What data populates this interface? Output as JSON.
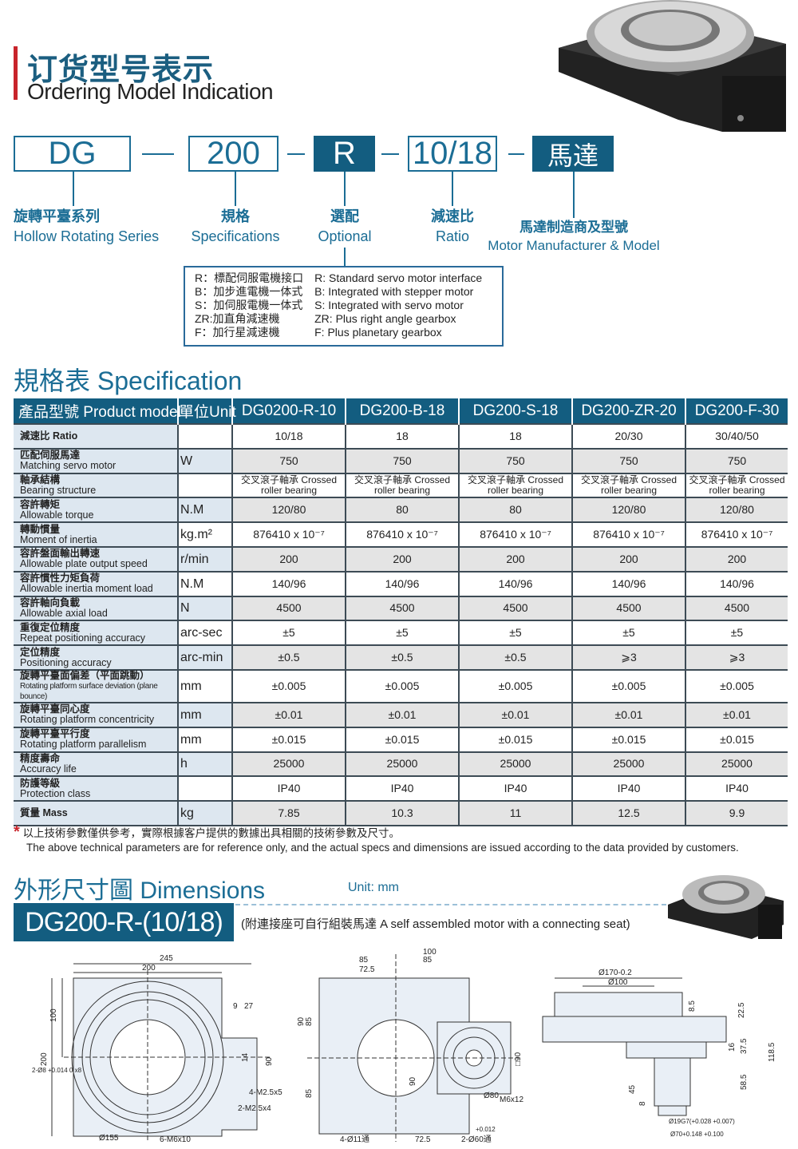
{
  "header": {
    "title_cn": "订货型号表示",
    "title_en": "Ordering Model Indication"
  },
  "model_code": [
    {
      "code": "DG",
      "cn": "旋轉平臺系列",
      "en": "Hollow Rotating Series"
    },
    {
      "code": "200",
      "cn": "規格",
      "en": "Specifications"
    },
    {
      "code": "R",
      "cn": "選配",
      "en": "Optional"
    },
    {
      "code": "10/18",
      "cn": "減速比",
      "en": "Ratio"
    },
    {
      "code": "馬達",
      "cn": "馬達制造商及型號",
      "en": "Motor Manufacturer & Model"
    }
  ],
  "options": {
    "cn": [
      "R：標配伺服電機接口",
      "B：加步進電機一体式",
      "S：加伺服電機一体式",
      "ZR:加直角減速機",
      "F：加行星減速機"
    ],
    "en": [
      "R: Standard servo motor interface",
      "B: Integrated with stepper motor",
      "S: Integrated with servo motor",
      "ZR: Plus right angle gearbox",
      "F: Plus planetary gearbox"
    ]
  },
  "spec": {
    "title": "規格表 Specification",
    "headers": [
      "產品型號 Product model",
      "單位Unit",
      "DG0200-R-10",
      "DG200-B-18",
      "DG200-S-18",
      "DG200-ZR-20",
      "DG200-F-30"
    ],
    "rows": [
      {
        "cn": "減速比 Ratio",
        "en": "",
        "unit": "",
        "v": [
          "10/18",
          "18",
          "18",
          "20/30",
          "30/40/50"
        ]
      },
      {
        "cn": "匹配伺服馬達",
        "en": "Matching servo motor",
        "unit": "W",
        "v": [
          "750",
          "750",
          "750",
          "750",
          "750"
        ]
      },
      {
        "cn": "軸承結構",
        "en": "Bearing structure",
        "unit": "",
        "v": [
          "交叉滾子軸承 Crossed roller bearing",
          "交叉滾子軸承 Crossed roller bearing",
          "交叉滾子軸承 Crossed roller bearing",
          "交叉滾子軸承 Crossed roller bearing",
          "交叉滾子軸承 Crossed roller bearing"
        ]
      },
      {
        "cn": "容許轉矩",
        "en": "Allowable torque",
        "unit": "N.M",
        "v": [
          "120/80",
          "80",
          "80",
          "120/80",
          "120/80"
        ]
      },
      {
        "cn": "轉動慣量",
        "en": "Moment of inertia",
        "unit": "kg.m²",
        "v": [
          "876410 x 10⁻⁷",
          "876410 x 10⁻⁷",
          "876410 x 10⁻⁷",
          "876410 x 10⁻⁷",
          "876410 x 10⁻⁷"
        ]
      },
      {
        "cn": "容許盤面輸出轉速",
        "en": "Allowable plate output speed",
        "unit": "r/min",
        "v": [
          "200",
          "200",
          "200",
          "200",
          "200"
        ]
      },
      {
        "cn": "容許慣性力矩負荷",
        "en": "Allowable inertia moment load",
        "unit": "N.M",
        "v": [
          "140/96",
          "140/96",
          "140/96",
          "140/96",
          "140/96"
        ]
      },
      {
        "cn": "容許軸向負載",
        "en": "Allowable axial load",
        "unit": "N",
        "v": [
          "4500",
          "4500",
          "4500",
          "4500",
          "4500"
        ]
      },
      {
        "cn": "重復定位精度",
        "en": "Repeat positioning accuracy",
        "unit": "arc-sec",
        "v": [
          "±5",
          "±5",
          "±5",
          "±5",
          "±5"
        ]
      },
      {
        "cn": "定位精度",
        "en": "Positioning accuracy",
        "unit": "arc-min",
        "v": [
          "±0.5",
          "±0.5",
          "±0.5",
          "⩾3",
          "⩾3"
        ]
      },
      {
        "cn": "旋轉平臺面偏差（平面跳動）",
        "en": "Rotating platform surface deviation (plane bounce)",
        "unit": "mm",
        "v": [
          "±0.005",
          "±0.005",
          "±0.005",
          "±0.005",
          "±0.005"
        ]
      },
      {
        "cn": "旋轉平臺同心度",
        "en": "Rotating platform concentricity",
        "unit": "mm",
        "v": [
          "±0.01",
          "±0.01",
          "±0.01",
          "±0.01",
          "±0.01"
        ]
      },
      {
        "cn": "旋轉平臺平行度",
        "en": "Rotating platform parallelism",
        "unit": "mm",
        "v": [
          "±0.015",
          "±0.015",
          "±0.015",
          "±0.015",
          "±0.015"
        ]
      },
      {
        "cn": "精度壽命",
        "en": "Accuracy life",
        "unit": "h",
        "v": [
          "25000",
          "25000",
          "25000",
          "25000",
          "25000"
        ]
      },
      {
        "cn": "防護等級",
        "en": "Protection class",
        "unit": "",
        "v": [
          "IP40",
          "IP40",
          "IP40",
          "IP40",
          "IP40"
        ]
      },
      {
        "cn": "質量 Mass",
        "en": "",
        "unit": "kg",
        "v": [
          "7.85",
          "10.3",
          "11",
          "12.5",
          "9.9"
        ]
      }
    ],
    "note_cn": "以上技術參數僅供參考，實際根據客户提供的數據出具相關的技術參數及尺寸。",
    "note_en": "The above technical parameters are for reference only, and the actual specs and dimensions are issued according to the data provided by customers."
  },
  "dimensions": {
    "title": "外形尺寸圖 Dimensions",
    "unit": "Unit: mm",
    "model": "DG200-R-(10/18)",
    "caption": "(附連接座可自行組裝馬達 A self assembled motor with a connecting seat)",
    "view1": [
      "245",
      "200",
      "100",
      "200",
      "9",
      "27",
      "90",
      "14",
      "2-Ø8 +0.014 0 x8",
      "4-M2.5x5",
      "2-M2.5x4",
      "Ø155",
      "6-M6x10"
    ],
    "view2": [
      "100",
      "85",
      "85",
      "72.5",
      "90",
      "85",
      "85",
      "□90",
      "90",
      "Ø80",
      "M6x12",
      "4-Ø11通",
      "72.5",
      "2-Ø60通",
      "+0.012"
    ],
    "view3": [
      "Ø170-0.2",
      "Ø100",
      "8.5",
      "22.5",
      "37.5",
      "16",
      "118.5",
      "58.5",
      "45",
      "8",
      "Ø19G7(+0.028 +0.007)",
      "Ø70+0.148 +0.100"
    ]
  },
  "colors": {
    "brand": "#135d80",
    "accent_red": "#c8242b",
    "label_bg": "#dde7f0"
  }
}
